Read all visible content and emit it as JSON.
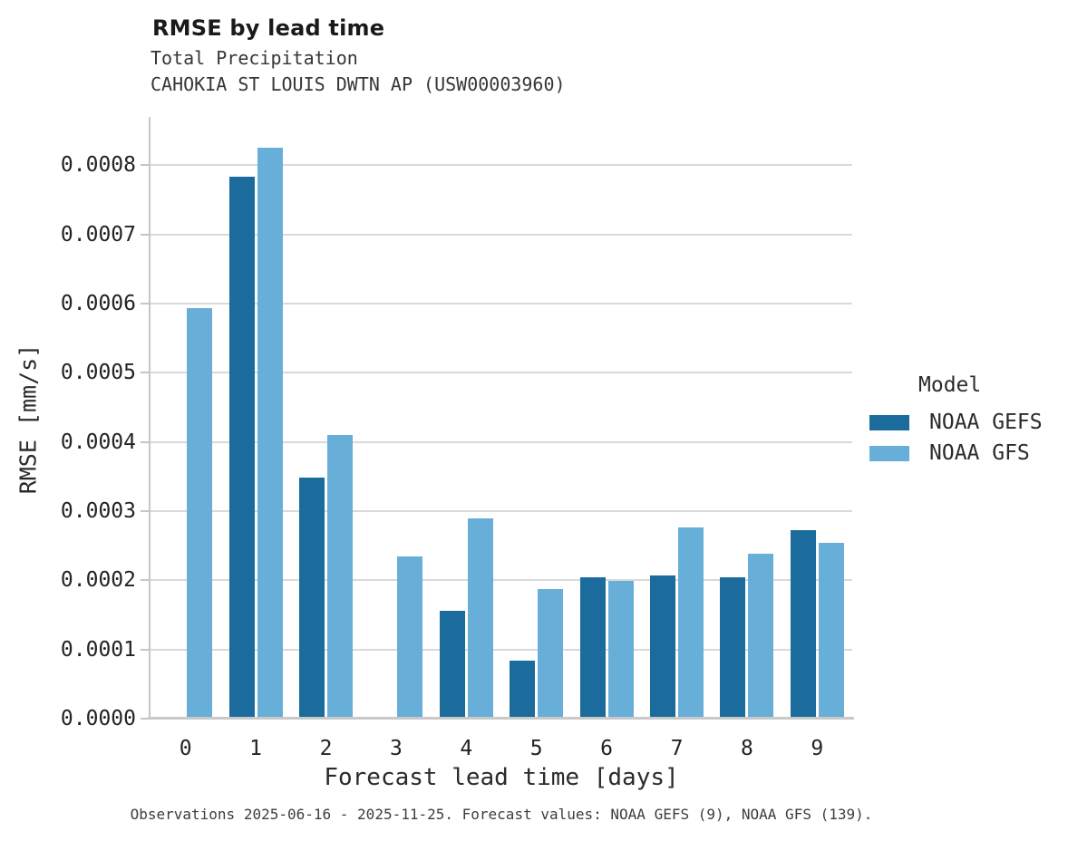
{
  "header": {
    "title": "RMSE by lead time",
    "subtitle_variable": "Total Precipitation",
    "subtitle_station": "CAHOKIA ST LOUIS DWTN AP (USW00003960)"
  },
  "legend": {
    "title": "Model",
    "items": [
      {
        "label": "NOAA GEFS",
        "color": "#1b6c9d"
      },
      {
        "label": "NOAA GFS",
        "color": "#67afd8"
      }
    ]
  },
  "caption": "Observations 2025-06-16 - 2025-11-25. Forecast values: NOAA GEFS (9), NOAA GFS (139).",
  "chart_data": {
    "type": "bar",
    "title": "RMSE by lead time",
    "subtitle": "Total Precipitation — CAHOKIA ST LOUIS DWTN AP (USW00003960)",
    "xlabel": "Forecast lead time [days]",
    "ylabel": "RMSE [mm/s]",
    "categories": [
      "0",
      "1",
      "2",
      "3",
      "4",
      "5",
      "6",
      "7",
      "8",
      "9"
    ],
    "series": [
      {
        "name": "NOAA GEFS",
        "color": "#1b6c9d",
        "values": [
          null,
          0.000783,
          0.000348,
          null,
          0.000156,
          8.4e-05,
          0.000204,
          0.000207,
          0.000204,
          0.000272
        ]
      },
      {
        "name": "NOAA GFS",
        "color": "#67afd8",
        "values": [
          0.000594,
          0.000826,
          0.00041,
          0.000235,
          0.000289,
          0.000187,
          0.000199,
          0.000277,
          0.000239,
          0.000254
        ]
      }
    ],
    "ylim": [
      0,
      0.00087
    ],
    "ytick_values": [
      0,
      0.0001,
      0.0002,
      0.0003,
      0.0004,
      0.0005,
      0.0006,
      0.0007,
      0.0008
    ],
    "ytick_labels": [
      "0.0000",
      "0.0001",
      "0.0002",
      "0.0003",
      "0.0004",
      "0.0005",
      "0.0006",
      "0.0007",
      "0.0008"
    ],
    "grid": true,
    "legend_title": "Model",
    "legend_position": "right"
  }
}
